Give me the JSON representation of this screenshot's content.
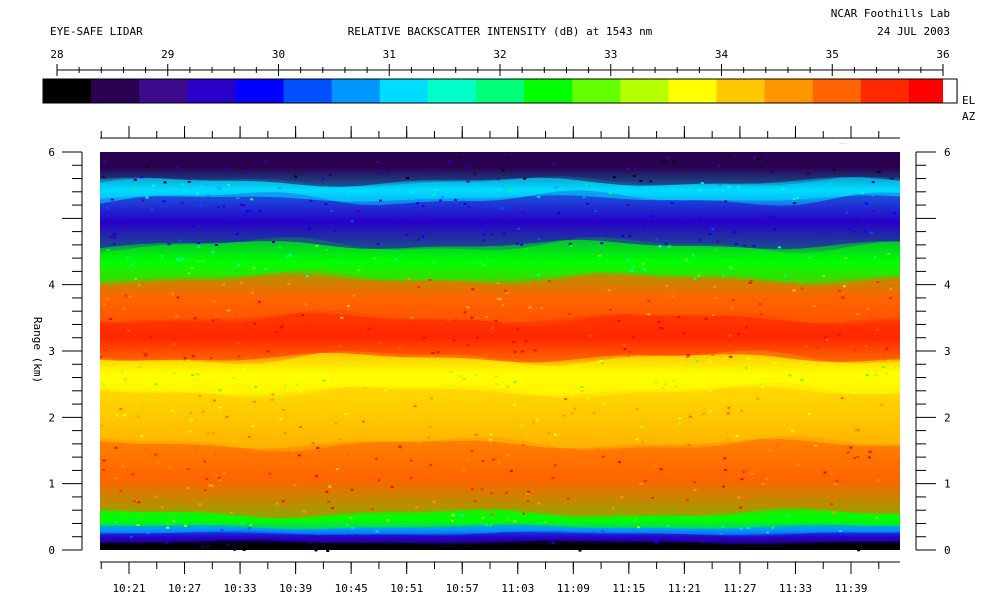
{
  "header": {
    "left": "EYE-SAFE LIDAR",
    "center": "RELATIVE BACKSCATTER INTENSITY (dB) at 1543 nm",
    "org": "NCAR Foothills Lab",
    "date": "24 JUL 2003"
  },
  "colorbar": {
    "ticks": [
      "28",
      "29",
      "30",
      "31",
      "32",
      "33",
      "34",
      "35",
      "36"
    ],
    "side_labels": [
      "EL",
      "AZ"
    ],
    "colors": [
      "#000000",
      "#2a0050",
      "#3c0a8c",
      "#2800c8",
      "#0000ff",
      "#0050ff",
      "#0096ff",
      "#00dcff",
      "#00ffc8",
      "#00ff78",
      "#00ff00",
      "#64ff00",
      "#b4ff00",
      "#ffff00",
      "#ffc800",
      "#ff9600",
      "#ff6400",
      "#ff2800",
      "#ff0000"
    ]
  },
  "chart_data": {
    "type": "heatmap",
    "xlabel": "",
    "ylabel": "Range (km)",
    "x_ticks": [
      "10:21",
      "10:27",
      "10:33",
      "10:39",
      "10:45",
      "10:51",
      "10:57",
      "11:03",
      "11:09",
      "11:15",
      "11:21",
      "11:27",
      "11:33",
      "11:39"
    ],
    "y_ticks": [
      "0",
      "1",
      "2",
      "3",
      "4",
      "6"
    ],
    "ylim": [
      0,
      6
    ],
    "colorbar_range_dB": [
      28,
      36
    ],
    "layers": [
      {
        "range_km": [
          0.0,
          0.12
        ],
        "intensity_dB": 28.0
      },
      {
        "range_km": [
          0.12,
          0.25
        ],
        "intensity_dB": 29.3
      },
      {
        "range_km": [
          0.25,
          0.35
        ],
        "intensity_dB": 30.8
      },
      {
        "range_km": [
          0.35,
          0.55
        ],
        "intensity_dB": 32.6
      },
      {
        "range_km": [
          0.55,
          1.6
        ],
        "intensity_dB": 35.2
      },
      {
        "range_km": [
          1.6,
          2.4
        ],
        "intensity_dB": 34.3
      },
      {
        "range_km": [
          2.4,
          2.9
        ],
        "intensity_dB": 33.6
      },
      {
        "range_km": [
          2.9,
          3.5
        ],
        "intensity_dB": 35.7
      },
      {
        "range_km": [
          3.5,
          4.1
        ],
        "intensity_dB": 35.1
      },
      {
        "range_km": [
          4.1,
          4.6
        ],
        "intensity_dB": 32.3
      },
      {
        "range_km": [
          4.6,
          5.3
        ],
        "intensity_dB": 29.5
      },
      {
        "range_km": [
          5.3,
          5.55
        ],
        "intensity_dB": 31.3
      },
      {
        "range_km": [
          5.55,
          6.0
        ],
        "intensity_dB": 28.6
      }
    ]
  }
}
